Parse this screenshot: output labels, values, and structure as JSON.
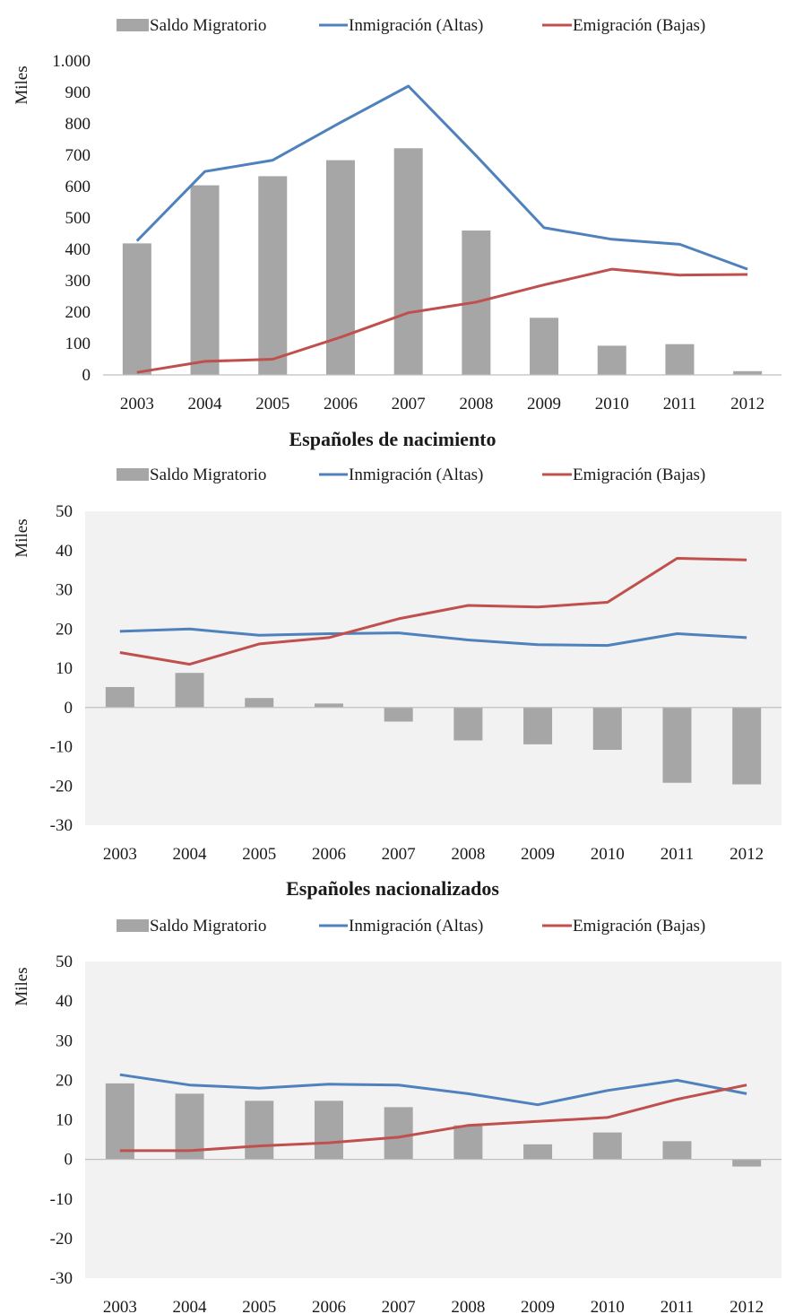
{
  "legend": {
    "bar_label": "Saldo Migratorio",
    "line1_label": "Inmigración (Altas)",
    "line2_label": "Emigración (Bajas)"
  },
  "colors": {
    "bar": "#a6a6a6",
    "line1": "#4f81bd",
    "line2": "#c0504d",
    "plot_bg": "#f2f2f2",
    "axis": "#bfbfbf",
    "text": "#1a1a1a"
  },
  "chart_data": [
    {
      "type": "bar",
      "title": "",
      "xlabel": "",
      "ylabel": "Miles",
      "ylim": [
        0,
        1000
      ],
      "yticks": [
        0,
        100,
        200,
        300,
        400,
        500,
        600,
        700,
        800,
        900,
        1000
      ],
      "ytick_labels": [
        "0",
        "100",
        "200",
        "300",
        "400",
        "500",
        "600",
        "700",
        "800",
        "900",
        "1.000"
      ],
      "categories": [
        "2003",
        "2004",
        "2005",
        "2006",
        "2007",
        "2008",
        "2009",
        "2010",
        "2011",
        "2012"
      ],
      "series": [
        {
          "name": "Saldo Migratorio",
          "type": "bar",
          "values": [
            419,
            604,
            633,
            684,
            722,
            460,
            182,
            93,
            98,
            12
          ]
        },
        {
          "name": "Inmigración (Altas)",
          "type": "line",
          "values": [
            427,
            648,
            684,
            804,
            920,
            698,
            469,
            432,
            416,
            337
          ]
        },
        {
          "name": "Emigración (Bajas)",
          "type": "line",
          "values": [
            8,
            43,
            50,
            120,
            198,
            232,
            287,
            337,
            318,
            320
          ]
        }
      ],
      "legend_position": "top",
      "grid": false
    },
    {
      "type": "bar",
      "title": "Españoles de nacimiento",
      "xlabel": "",
      "ylabel": "Miles",
      "ylim": [
        -30,
        50
      ],
      "yticks": [
        -30,
        -20,
        -10,
        0,
        10,
        20,
        30,
        40,
        50
      ],
      "ytick_labels": [
        "-30",
        "-20",
        "-10",
        "0",
        "10",
        "20",
        "30",
        "40",
        "50"
      ],
      "categories": [
        "2003",
        "2004",
        "2005",
        "2006",
        "2007",
        "2008",
        "2009",
        "2010",
        "2011",
        "2012"
      ],
      "series": [
        {
          "name": "Saldo Migratorio",
          "type": "bar",
          "values": [
            5.2,
            8.8,
            2.4,
            1.0,
            -3.6,
            -8.4,
            -9.4,
            -10.8,
            -19.2,
            -19.6
          ]
        },
        {
          "name": "Inmigración (Altas)",
          "type": "line",
          "values": [
            19.4,
            20.0,
            18.4,
            18.8,
            19.0,
            17.2,
            16.0,
            15.8,
            18.8,
            17.8
          ]
        },
        {
          "name": "Emigración (Bajas)",
          "type": "line",
          "values": [
            14.0,
            11.0,
            16.2,
            17.8,
            22.6,
            26.0,
            25.6,
            26.8,
            38.0,
            37.6
          ]
        }
      ],
      "legend_position": "top",
      "grid": false
    },
    {
      "type": "bar",
      "title": "Españoles nacionalizados",
      "xlabel": "",
      "ylabel": "Miles",
      "ylim": [
        -30,
        50
      ],
      "yticks": [
        -30,
        -20,
        -10,
        0,
        10,
        20,
        30,
        40,
        50
      ],
      "ytick_labels": [
        "-30",
        "-20",
        "-10",
        "0",
        "10",
        "20",
        "30",
        "40",
        "50"
      ],
      "categories": [
        "2003",
        "2004",
        "2005",
        "2006",
        "2007",
        "2008",
        "2009",
        "2010",
        "2011",
        "2012"
      ],
      "series": [
        {
          "name": "Saldo Migratorio",
          "type": "bar",
          "values": [
            19.2,
            16.6,
            14.8,
            14.8,
            13.2,
            8.6,
            3.8,
            6.8,
            4.6,
            -1.8
          ]
        },
        {
          "name": "Inmigración (Altas)",
          "type": "line",
          "values": [
            21.4,
            18.8,
            18.0,
            19.0,
            18.8,
            16.6,
            13.8,
            17.4,
            20.0,
            16.6
          ]
        },
        {
          "name": "Emigración (Bajas)",
          "type": "line",
          "values": [
            2.2,
            2.2,
            3.4,
            4.2,
            5.6,
            8.6,
            9.6,
            10.6,
            15.2,
            18.8
          ]
        }
      ],
      "legend_position": "top",
      "grid": false
    }
  ]
}
